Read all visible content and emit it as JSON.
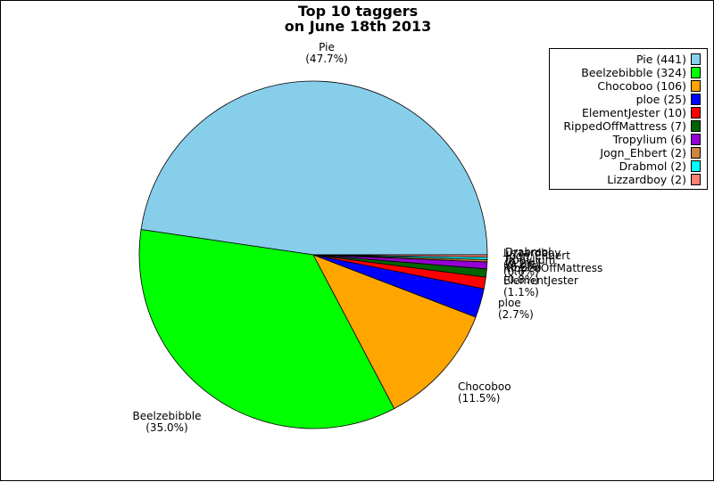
{
  "chart_data": {
    "type": "pie",
    "title": "Top 10 taggers\non June 18th 2013",
    "title_lines": [
      "Top 10 taggers",
      "on June 18th 2013"
    ],
    "slices": [
      {
        "name": "Pie",
        "value": 441,
        "percent": "(47.7%)",
        "legend": "Pie (441)",
        "color": "#87ceeb"
      },
      {
        "name": "Beelzebibble",
        "value": 324,
        "percent": "(35.0%)",
        "legend": "Beelzebibble (324)",
        "color": "#00ff00"
      },
      {
        "name": "Chocoboo",
        "value": 106,
        "percent": "(11.5%)",
        "legend": "Chocoboo (106)",
        "color": "#ffa500"
      },
      {
        "name": "ploe",
        "value": 25,
        "percent": "(2.7%)",
        "legend": "ploe (25)",
        "color": "#0000ff"
      },
      {
        "name": "ElementJester",
        "value": 10,
        "percent": "(1.1%)",
        "legend": "ElementJester (10)",
        "color": "#ff0000"
      },
      {
        "name": "RippedOffMattress",
        "value": 7,
        "percent": "(0.8%)",
        "legend": "RippedOffMattress (7)",
        "color": "#006400"
      },
      {
        "name": "Tropylium",
        "value": 6,
        "percent": "(0.6%)",
        "legend": "Tropylium (6)",
        "color": "#9400d3"
      },
      {
        "name": "Jogn_Ehbert",
        "value": 2,
        "percent": "(0.2%)",
        "legend": "Jogn_Ehbert (2)",
        "color": "#cd853f"
      },
      {
        "name": "Drabmol",
        "value": 2,
        "percent": "(0.2%)",
        "legend": "Drabmol (2)",
        "color": "#00ffff"
      },
      {
        "name": "Lizzardboy",
        "value": 2,
        "percent": "(0.2%)",
        "legend": "Lizzardboy (2)",
        "color": "#fa8072"
      }
    ],
    "legend_position": "top-right"
  }
}
